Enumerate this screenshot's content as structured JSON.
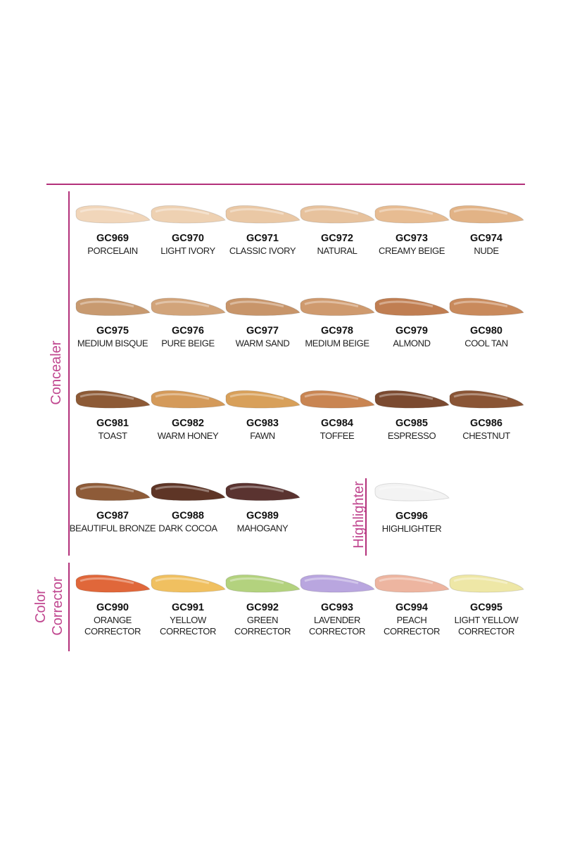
{
  "sections": [
    {
      "label": "Concealer",
      "swatches": [
        {
          "code": "GC969",
          "name": [
            "PORCELAIN"
          ],
          "color": "#f1d6ba"
        },
        {
          "code": "GC970",
          "name": [
            "LIGHT IVORY"
          ],
          "color": "#eed1b2"
        },
        {
          "code": "GC971",
          "name": [
            "CLASSIC IVORY"
          ],
          "color": "#eac8a5"
        },
        {
          "code": "GC972",
          "name": [
            "NATURAL"
          ],
          "color": "#e7c29d"
        },
        {
          "code": "GC973",
          "name": [
            "CREAMY BEIGE"
          ],
          "color": "#e7bc92"
        },
        {
          "code": "GC974",
          "name": [
            "NUDE"
          ],
          "color": "#e2b386"
        },
        {
          "code": "GC975",
          "name": [
            "MEDIUM BISQUE"
          ],
          "color": "#c89a70"
        },
        {
          "code": "GC976",
          "name": [
            "PURE BEIGE"
          ],
          "color": "#d2a47a"
        },
        {
          "code": "GC977",
          "name": [
            "WARM SAND"
          ],
          "color": "#c8956a"
        },
        {
          "code": "GC978",
          "name": [
            "MEDIUM BEIGE"
          ],
          "color": "#cf9a6e"
        },
        {
          "code": "GC979",
          "name": [
            "ALMOND"
          ],
          "color": "#c07e52"
        },
        {
          "code": "GC980",
          "name": [
            "COOL TAN"
          ],
          "color": "#c98a5c"
        },
        {
          "code": "GC981",
          "name": [
            "TOAST"
          ],
          "color": "#8d5a36"
        },
        {
          "code": "GC982",
          "name": [
            "WARM HONEY"
          ],
          "color": "#d49a5a"
        },
        {
          "code": "GC983",
          "name": [
            "FAWN"
          ],
          "color": "#d8a05a"
        },
        {
          "code": "GC984",
          "name": [
            "TOFFEE"
          ],
          "color": "#c98552"
        },
        {
          "code": "GC985",
          "name": [
            "ESPRESSO"
          ],
          "color": "#7b4a30"
        },
        {
          "code": "GC986",
          "name": [
            "CHESTNUT"
          ],
          "color": "#8a5535"
        },
        {
          "code": "GC987",
          "name": [
            "BEAUTIFUL BRONZE"
          ],
          "color": "#8e5b38"
        },
        {
          "code": "GC988",
          "name": [
            "DARK COCOA"
          ],
          "color": "#5e3526"
        },
        {
          "code": "GC989",
          "name": [
            "MAHOGANY"
          ],
          "color": "#5a3330"
        }
      ]
    },
    {
      "label": "Highlighter",
      "swatches": [
        {
          "code": "GC996",
          "name": [
            "HIGHLIGHTER"
          ],
          "color": "#f3f3f3"
        }
      ]
    },
    {
      "label": "Color Corrector",
      "swatches": [
        {
          "code": "GC990",
          "name": [
            "ORANGE",
            "CORRECTOR"
          ],
          "color": "#e0673a"
        },
        {
          "code": "GC991",
          "name": [
            "YELLOW",
            "CORRECTOR"
          ],
          "color": "#f0c060"
        },
        {
          "code": "GC992",
          "name": [
            "GREEN",
            "CORRECTOR"
          ],
          "color": "#b3d27e"
        },
        {
          "code": "GC993",
          "name": [
            "LAVENDER",
            "CORRECTOR"
          ],
          "color": "#b9a6df"
        },
        {
          "code": "GC994",
          "name": [
            "PEACH",
            "CORRECTOR"
          ],
          "color": "#edb5a0"
        },
        {
          "code": "GC995",
          "name": [
            "LIGHT YELLOW",
            "CORRECTOR"
          ],
          "color": "#eee7a6"
        }
      ]
    }
  ]
}
